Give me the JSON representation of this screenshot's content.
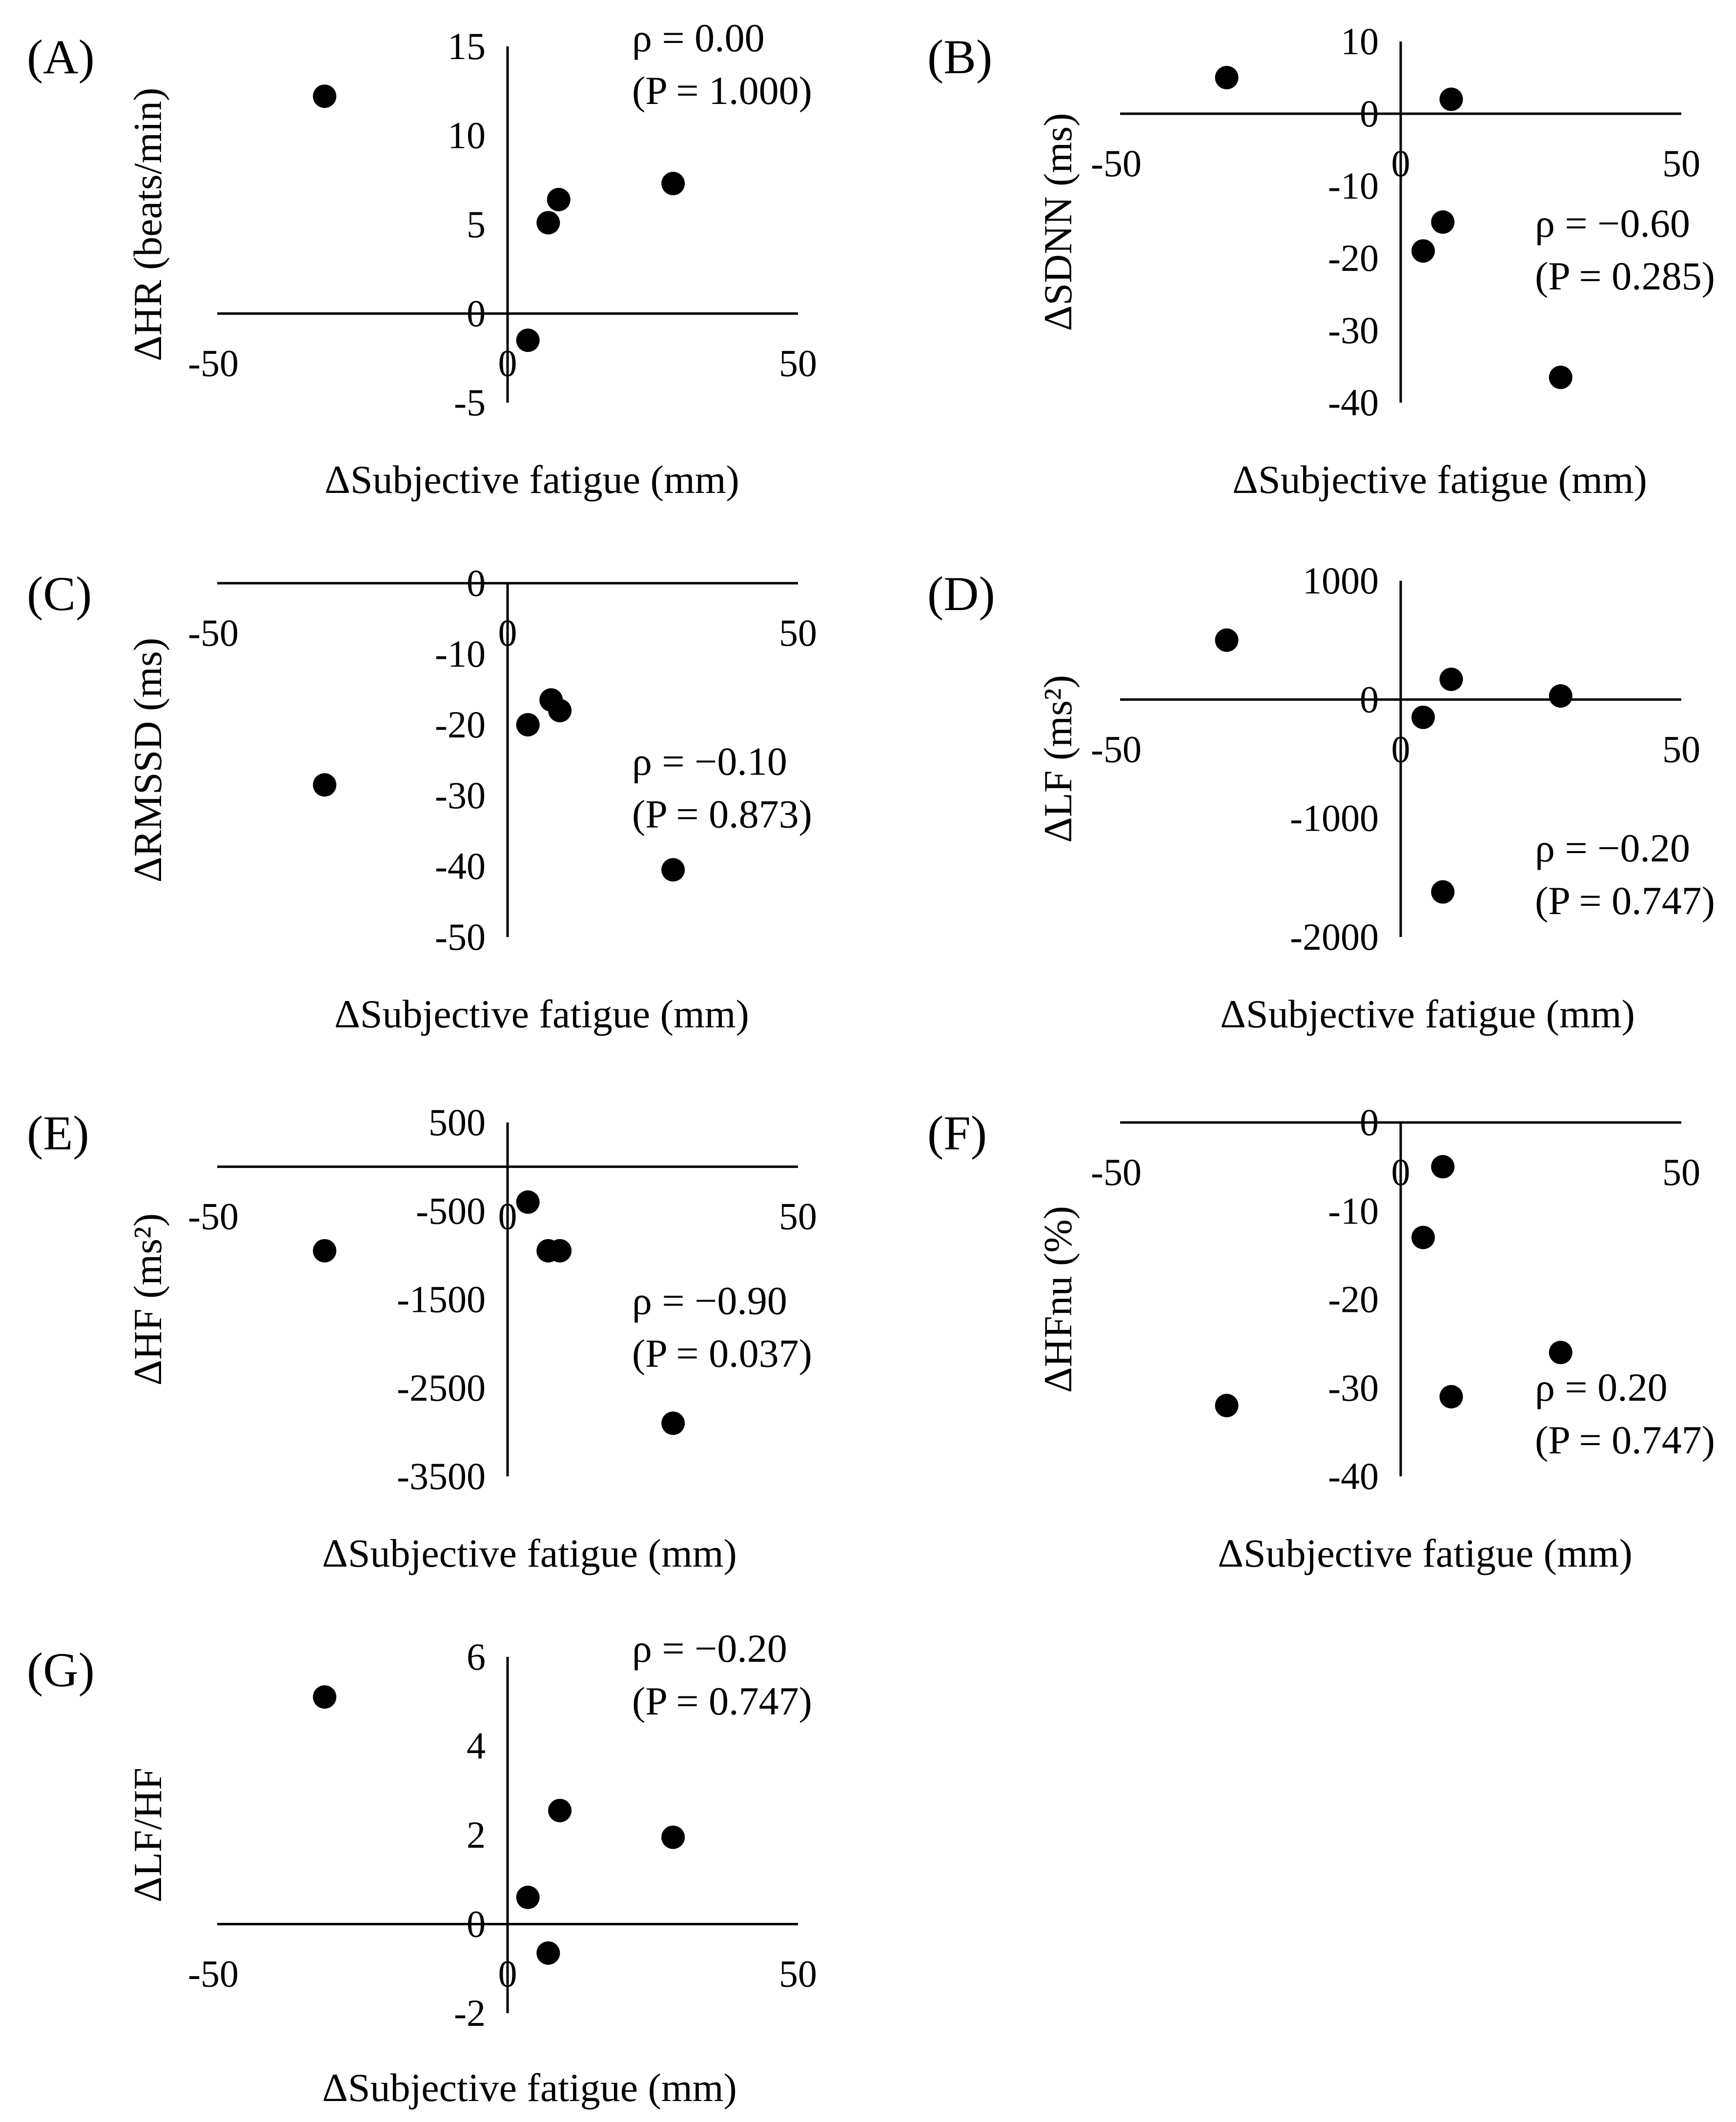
{
  "figure": {
    "panels": [
      "(A)",
      "(B)",
      "(C)",
      "(D)",
      "(E)",
      "(F)",
      "(G)"
    ]
  },
  "chart_data": [
    {
      "type": "scatter",
      "panel_label": "(A)",
      "xlabel": "ΔSubjective fatigue (mm)",
      "ylabel": "ΔHR (beats/min)",
      "xlim": [
        -50,
        50
      ],
      "ylim": [
        -5,
        15
      ],
      "xticks": [
        "-50",
        "0",
        "50"
      ],
      "xtick_values": [
        -50,
        0,
        50
      ],
      "yticks": [
        "15",
        "10",
        "5",
        "0",
        "-5"
      ],
      "ytick_values": [
        15,
        10,
        5,
        0,
        -5
      ],
      "annotation": [
        "ρ = 0.00",
        "(P = 1.000)"
      ],
      "annotation_pos": "top-right",
      "points": [
        {
          "x": -31.5,
          "y": 12.2
        },
        {
          "x": 3.5,
          "y": -1.5
        },
        {
          "x": 7.0,
          "y": 5.1
        },
        {
          "x": 8.8,
          "y": 6.4
        },
        {
          "x": 28.5,
          "y": 7.3
        }
      ]
    },
    {
      "type": "scatter",
      "panel_label": "(B)",
      "xlabel": "ΔSubjective fatigue (mm)",
      "ylabel": "ΔSDNN (ms)",
      "xlim": [
        -50,
        50
      ],
      "ylim": [
        -40,
        10
      ],
      "xticks": [
        "-50",
        "0",
        "50"
      ],
      "xtick_values": [
        -50,
        0,
        50
      ],
      "yticks": [
        "10",
        "0",
        "-10",
        "-20",
        "-30",
        "-40"
      ],
      "ytick_values": [
        10,
        0,
        -10,
        -20,
        -30,
        -40
      ],
      "annotation": [
        "ρ = −0.60",
        "(P = 0.285)"
      ],
      "annotation_pos": "right",
      "points": [
        {
          "x": -31.0,
          "y": 5.0
        },
        {
          "x": 9.0,
          "y": 2.0
        },
        {
          "x": 7.5,
          "y": -15.0
        },
        {
          "x": 4.0,
          "y": -19.0
        },
        {
          "x": 28.5,
          "y": -36.5
        }
      ]
    },
    {
      "type": "scatter",
      "panel_label": "(C)",
      "xlabel": "ΔSubjective fatigue (mm)",
      "ylabel": "ΔRMSSD (ms)",
      "xlim": [
        -50,
        50
      ],
      "ylim": [
        -50,
        0
      ],
      "xticks": [
        "-50",
        "0",
        "50"
      ],
      "xtick_values": [
        -50,
        0,
        50
      ],
      "yticks": [
        "0",
        "-10",
        "-20",
        "-30",
        "-40",
        "-50"
      ],
      "ytick_values": [
        0,
        -10,
        -20,
        -30,
        -40,
        -50
      ],
      "annotation": [
        "ρ = −0.10",
        "(P = 0.873)"
      ],
      "annotation_pos": "right",
      "points": [
        {
          "x": -31.5,
          "y": -28.5
        },
        {
          "x": 3.5,
          "y": -20.0
        },
        {
          "x": 7.5,
          "y": -16.5
        },
        {
          "x": 9.0,
          "y": -18.0
        },
        {
          "x": 28.5,
          "y": -40.5
        }
      ]
    },
    {
      "type": "scatter",
      "panel_label": "(D)",
      "xlabel": "ΔSubjective fatigue (mm)",
      "ylabel": "ΔLF (ms²)",
      "xlim": [
        -50,
        50
      ],
      "ylim": [
        -2000,
        1000
      ],
      "xticks": [
        "-50",
        "0",
        "50"
      ],
      "xtick_values": [
        -50,
        0,
        50
      ],
      "yticks": [
        "1000",
        "0",
        "-1000",
        "-2000"
      ],
      "ytick_values": [
        1000,
        0,
        -1000,
        -2000
      ],
      "annotation": [
        "ρ = −0.20",
        "(P = 0.747)"
      ],
      "annotation_pos": "bottom-right",
      "points": [
        {
          "x": -31.0,
          "y": 500
        },
        {
          "x": 9.0,
          "y": 170
        },
        {
          "x": 4.0,
          "y": -150
        },
        {
          "x": 28.5,
          "y": 30
        },
        {
          "x": 7.5,
          "y": -1620
        }
      ]
    },
    {
      "type": "scatter",
      "panel_label": "(E)",
      "xlabel": "ΔSubjective fatigue (mm)",
      "ylabel": "ΔHF (ms²)",
      "xlim": [
        -50,
        50
      ],
      "ylim": [
        -3500,
        500
      ],
      "xticks": [
        "-50",
        "0",
        "50"
      ],
      "xtick_values": [
        -50,
        0,
        50
      ],
      "yticks": [
        "500",
        "-500",
        "-1500",
        "-2500",
        "-3500"
      ],
      "ytick_values": [
        500,
        -500,
        -1500,
        -2500,
        -3500
      ],
      "annotation": [
        "ρ = −0.90",
        "(P = 0.037)"
      ],
      "annotation_pos": "right",
      "points": [
        {
          "x": -31.5,
          "y": -950
        },
        {
          "x": 3.5,
          "y": -400
        },
        {
          "x": 7.0,
          "y": -950
        },
        {
          "x": 9.0,
          "y": -950
        },
        {
          "x": 28.5,
          "y": -2900
        }
      ]
    },
    {
      "type": "scatter",
      "panel_label": "(F)",
      "xlabel": "ΔSubjective fatigue (mm)",
      "ylabel": "ΔHFnu (%)",
      "xlim": [
        -50,
        50
      ],
      "ylim": [
        -40,
        0
      ],
      "xticks": [
        "-50",
        "0",
        "50"
      ],
      "xtick_values": [
        -50,
        0,
        50
      ],
      "yticks": [
        "0",
        "-10",
        "-20",
        "-30",
        "-40"
      ],
      "ytick_values": [
        0,
        -10,
        -20,
        -30,
        -40
      ],
      "annotation": [
        "ρ = 0.20",
        "(P = 0.747)"
      ],
      "annotation_pos": "bottom-right",
      "points": [
        {
          "x": 7.5,
          "y": -5.0
        },
        {
          "x": 4.0,
          "y": -13.0
        },
        {
          "x": 28.5,
          "y": -26.0
        },
        {
          "x": 9.0,
          "y": -31.0
        },
        {
          "x": -31.0,
          "y": -32.0
        }
      ]
    },
    {
      "type": "scatter",
      "panel_label": "(G)",
      "xlabel": "ΔSubjective fatigue (mm)",
      "ylabel": "ΔLF/HF",
      "xlim": [
        -50,
        50
      ],
      "ylim": [
        -2,
        6
      ],
      "xticks": [
        "-50",
        "0",
        "50"
      ],
      "xtick_values": [
        -50,
        0,
        50
      ],
      "yticks": [
        "6",
        "4",
        "2",
        "0",
        "-2"
      ],
      "ytick_values": [
        6,
        4,
        2,
        0,
        -2
      ],
      "annotation": [
        "ρ = −0.20",
        "(P = 0.747)"
      ],
      "annotation_pos": "top-right",
      "points": [
        {
          "x": -31.5,
          "y": 5.1
        },
        {
          "x": 3.5,
          "y": 0.6
        },
        {
          "x": 7.0,
          "y": -0.65
        },
        {
          "x": 9.0,
          "y": 2.55
        },
        {
          "x": 28.5,
          "y": 1.95
        }
      ]
    }
  ]
}
